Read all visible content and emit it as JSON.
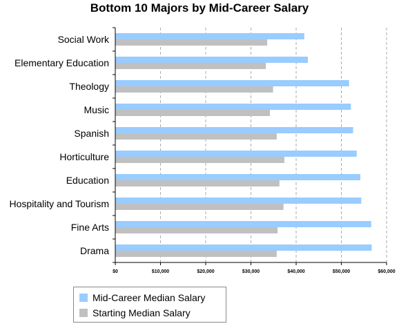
{
  "chart_data": {
    "type": "bar",
    "orientation": "horizontal",
    "title": "Bottom 10 Majors by Mid-Career Salary",
    "categories": [
      "Social Work",
      "Elementary Education",
      "Theology",
      "Music",
      "Spanish",
      "Horticulture",
      "Education",
      "Hospitality and Tourism",
      "Fine Arts",
      "Drama"
    ],
    "series": [
      {
        "name": "Mid-Career Median Salary",
        "color": "#99ccff",
        "values": [
          41800,
          42600,
          51700,
          52100,
          52600,
          53400,
          54200,
          54400,
          56600,
          56700
        ]
      },
      {
        "name": "Starting Median Salary",
        "color": "#c0c0c0",
        "values": [
          33600,
          33300,
          34900,
          34200,
          35700,
          37400,
          36300,
          37200,
          35900,
          35700
        ]
      }
    ],
    "xlim": [
      0,
      60000
    ],
    "xticks": [
      0,
      10000,
      20000,
      30000,
      40000,
      50000,
      60000
    ],
    "xtick_labels": [
      "$0",
      "$10,000",
      "$20,000",
      "$30,000",
      "$40,000",
      "$50,000",
      "$60,000"
    ],
    "grid": "vertical-dashed",
    "legend_position": "bottom-left"
  }
}
